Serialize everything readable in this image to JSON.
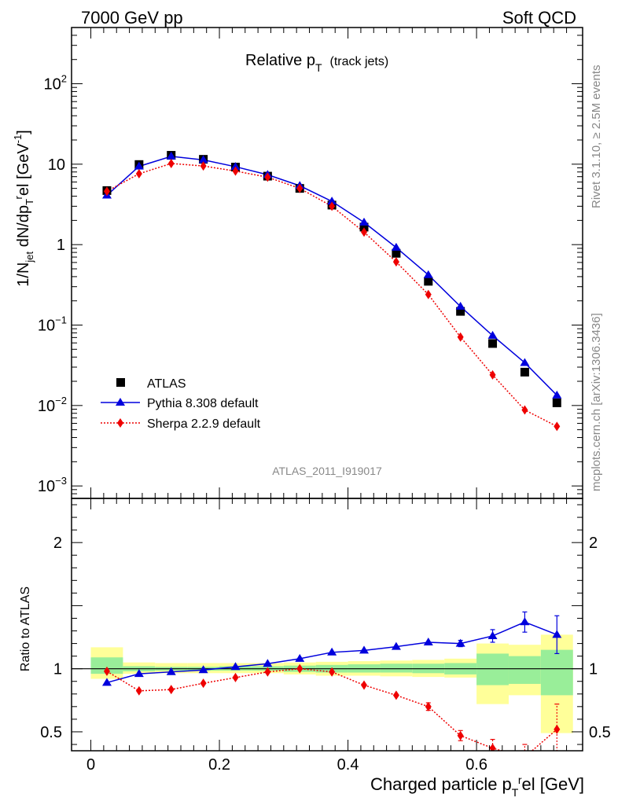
{
  "header": {
    "left": "7000 GeV pp",
    "right": "Soft QCD"
  },
  "plot_title": {
    "main": "Relative p",
    "sub": "T",
    "suffix": "(track jets)"
  },
  "side_text": {
    "rivet": "Rivet 3.1.10, ≥ 2.5M events",
    "mcplots": "mcplots.cern.ch [arXiv:1306.3436]"
  },
  "watermark": "ATLAS_2011_I919017",
  "axes": {
    "ylabel_top": "1/N_jet dN/dp_T^rel [GeV^-1]",
    "ylabel_bottom": "Ratio to ATLAS",
    "xlabel": "Charged particle p_T^rel [GeV]"
  },
  "legend": [
    {
      "label": "ATLAS",
      "color": "#000000",
      "marker": "square"
    },
    {
      "label": "Pythia 8.308 default",
      "color": "#0000dd",
      "marker": "triangle"
    },
    {
      "label": "Sherpa 2.2.9 default",
      "color": "#ee0000",
      "marker": "diamond"
    }
  ],
  "chart_data": [
    {
      "type": "line",
      "title": "Relative pT (track jets)",
      "xlabel": "Charged particle pT rel [GeV]",
      "ylabel": "1/Njet dN/dpT rel [GeV^-1]",
      "yscale": "log",
      "xlim": [
        -0.03,
        0.765
      ],
      "ylim": [
        0.0007,
        500
      ],
      "xticks": [
        "0",
        "0.2",
        "0.4",
        "0.6"
      ],
      "yticks": [
        "10^-3",
        "10^-2",
        "10^-1",
        "1",
        "10",
        "10^2"
      ],
      "x": [
        0.025,
        0.075,
        0.125,
        0.175,
        0.225,
        0.275,
        0.325,
        0.375,
        0.425,
        0.475,
        0.525,
        0.575,
        0.625,
        0.675,
        0.725
      ],
      "series": [
        {
          "name": "ATLAS",
          "values": [
            4.7,
            9.9,
            12.9,
            11.5,
            9.2,
            7.1,
            5.0,
            3.1,
            1.65,
            0.78,
            0.35,
            0.148,
            0.059,
            0.026,
            0.0108
          ]
        },
        {
          "name": "Pythia 8.308 default",
          "values": [
            4.1,
            9.4,
            12.5,
            11.3,
            9.3,
            7.4,
            5.4,
            3.45,
            1.89,
            0.92,
            0.42,
            0.17,
            0.074,
            0.034,
            0.0134
          ]
        },
        {
          "name": "Sherpa 2.2.9 default",
          "values": [
            4.6,
            7.6,
            10.2,
            9.5,
            8.2,
            6.9,
            5.0,
            3.0,
            1.43,
            0.61,
            0.24,
            0.071,
            0.024,
            0.0088,
            0.0055
          ]
        }
      ],
      "legend_position": "bottom-left",
      "grid": false
    },
    {
      "type": "line",
      "ylabel": "Ratio to ATLAS",
      "xlabel": "Charged particle pT rel [GeV]",
      "xlim": [
        -0.03,
        0.765
      ],
      "ylim": [
        0.35,
        2.35
      ],
      "xticks": [
        "0",
        "0.2",
        "0.4",
        "0.6"
      ],
      "yticks": [
        "0.5",
        "1",
        "2"
      ],
      "x": [
        0.025,
        0.075,
        0.125,
        0.175,
        0.225,
        0.275,
        0.325,
        0.375,
        0.425,
        0.475,
        0.525,
        0.575,
        0.625,
        0.675,
        0.725
      ],
      "reference": 1.0,
      "band_edges": [
        0.0,
        0.05,
        0.1,
        0.15,
        0.2,
        0.25,
        0.3,
        0.35,
        0.4,
        0.45,
        0.5,
        0.55,
        0.6,
        0.65,
        0.7,
        0.75
      ],
      "uncertainty_stat": [
        [
          0.96,
          1.09
        ],
        [
          0.98,
          1.02
        ],
        [
          0.985,
          1.015
        ],
        [
          0.985,
          1.015
        ],
        [
          0.985,
          1.02
        ],
        [
          0.985,
          1.02
        ],
        [
          0.975,
          1.025
        ],
        [
          0.97,
          1.03
        ],
        [
          0.97,
          1.035
        ],
        [
          0.97,
          1.04
        ],
        [
          0.965,
          1.04
        ],
        [
          0.955,
          1.045
        ],
        [
          0.87,
          1.12
        ],
        [
          0.88,
          1.1
        ],
        [
          0.79,
          1.15
        ]
      ],
      "uncertainty_total": [
        [
          0.92,
          1.17
        ],
        [
          0.96,
          1.05
        ],
        [
          0.965,
          1.045
        ],
        [
          0.965,
          1.045
        ],
        [
          0.965,
          1.045
        ],
        [
          0.965,
          1.045
        ],
        [
          0.955,
          1.05
        ],
        [
          0.945,
          1.055
        ],
        [
          0.945,
          1.06
        ],
        [
          0.94,
          1.065
        ],
        [
          0.935,
          1.07
        ],
        [
          0.93,
          1.08
        ],
        [
          0.72,
          1.2
        ],
        [
          0.79,
          1.19
        ],
        [
          0.49,
          1.27
        ]
      ],
      "series": [
        {
          "name": "Pythia 8.308 default",
          "values": [
            0.89,
            0.96,
            0.975,
            0.99,
            1.015,
            1.04,
            1.08,
            1.13,
            1.145,
            1.175,
            1.21,
            1.2,
            1.26,
            1.37,
            1.27
          ],
          "errors": [
            0,
            0,
            0,
            0,
            0,
            0,
            0,
            0,
            0,
            0,
            0,
            0.025,
            0.05,
            0.08,
            0.15
          ]
        },
        {
          "name": "Sherpa 2.2.9 default",
          "values": [
            0.98,
            0.825,
            0.835,
            0.885,
            0.93,
            0.975,
            1.0,
            0.975,
            0.87,
            0.79,
            0.7,
            0.47,
            0.37,
            0.3,
            0.52
          ],
          "errors": [
            0,
            0,
            0,
            0,
            0,
            0,
            0,
            0,
            0,
            0,
            0.03,
            0.04,
            0.07,
            0.1,
            0.2
          ]
        }
      ]
    }
  ]
}
